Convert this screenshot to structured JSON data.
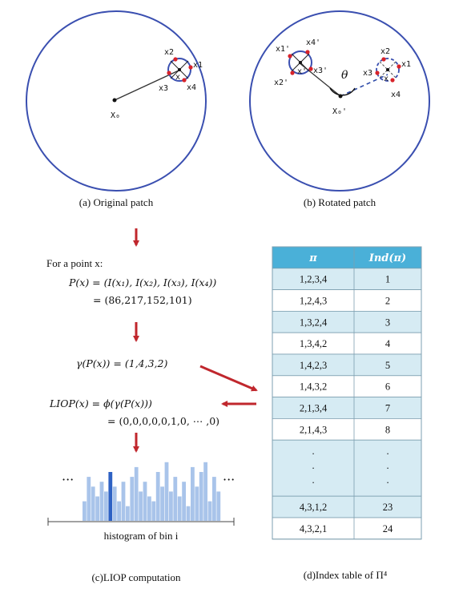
{
  "panels": {
    "a": {
      "caption": "(a) Original patch",
      "points": [
        "x1",
        "x2",
        "x3",
        "x4"
      ],
      "center": "x",
      "origin": "X₀"
    },
    "b": {
      "caption": "(b) Rotated patch",
      "rotated_points": [
        "x1'",
        "x2'",
        "x3'",
        "x4'"
      ],
      "rotated_center": "x'",
      "points": [
        "x1",
        "x2",
        "x3",
        "x4"
      ],
      "center": "x",
      "origin": "X₀'",
      "angle": "θ"
    },
    "c": {
      "caption": "(c)LIOP computation",
      "for_point": "For a point x:",
      "eq_p_lhs": "P(x) = (I(x₁), I(x₂), I(x₃), I(x₄))",
      "eq_p_val": "= (86,217,152,101)",
      "eq_gamma": "γ(P(x)) = (1,4,3,2)",
      "eq_liop": "LIOP(x) = ϕ(γ(P(x)))",
      "eq_liop_val": "= (0,0,0,0,0,1,0, ⋯ ,0)",
      "ellipsis_left": "···",
      "ellipsis_right": "···",
      "hist_caption": "histogram of bin i"
    },
    "d": {
      "caption": "(d)Index table of Π⁴",
      "col_pi": "π",
      "col_ind": "Ind(π)",
      "rows": [
        {
          "pi": "1,2,3,4",
          "ind": "1"
        },
        {
          "pi": "1,2,4,3",
          "ind": "2"
        },
        {
          "pi": "1,3,2,4",
          "ind": "3"
        },
        {
          "pi": "1,3,4,2",
          "ind": "4"
        },
        {
          "pi": "1,4,2,3",
          "ind": "5"
        },
        {
          "pi": "1,4,3,2",
          "ind": "6"
        },
        {
          "pi": "2,1,3,4",
          "ind": "7"
        },
        {
          "pi": "2,1,4,3",
          "ind": "8"
        }
      ],
      "ellipsis_rows": [
        ".",
        ".",
        "."
      ],
      "tail_rows": [
        {
          "pi": "4,3,1,2",
          "ind": "23"
        },
        {
          "pi": "4,3,2,1",
          "ind": "24"
        }
      ]
    }
  },
  "colors": {
    "circle": "#3a4fb0",
    "arrow_red": "#c0272d",
    "point_red": "#d8232a",
    "header": "#4ab0d8",
    "row_light": "#d6ebf3",
    "row_white": "#ffffff",
    "hist_bar": "#a9c4ea",
    "hist_highlight": "#2e62c4"
  },
  "histogram_values": [
    4,
    9,
    7,
    5,
    8,
    6,
    10,
    7,
    4,
    8,
    3,
    9,
    11,
    6,
    8,
    5,
    4,
    10,
    7,
    12,
    6,
    9,
    5,
    8,
    3,
    11,
    7,
    10,
    12,
    4,
    9,
    6
  ]
}
